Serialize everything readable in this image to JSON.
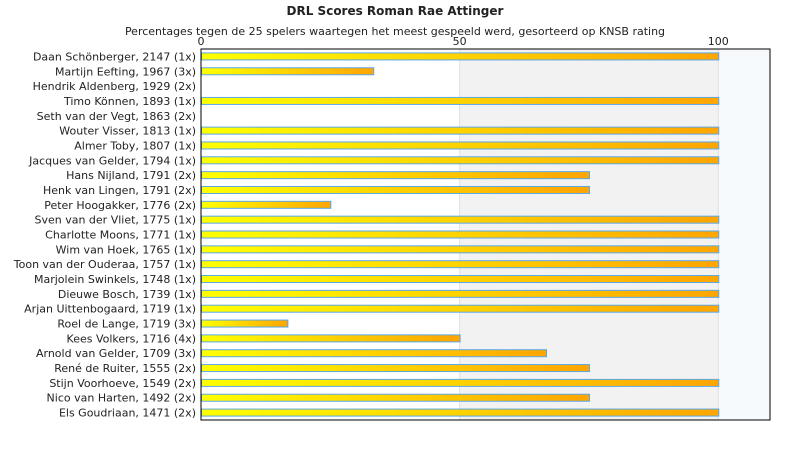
{
  "chart_data": {
    "type": "bar",
    "orientation": "horizontal",
    "title": "DRL Scores Roman Rae Attinger",
    "subtitle": "Percentages tegen de 25 spelers waartegen het meest gespeeld werd, gesorteerd op KNSB rating",
    "xlim": [
      0,
      110
    ],
    "xticks": [
      0,
      50,
      100
    ],
    "categories": [
      "Daan Schönberger, 2147 (1x)",
      "Martijn Eefting, 1967 (3x)",
      "Hendrik Aldenberg, 1929 (2x)",
      "Timo Können, 1893 (1x)",
      "Seth van der Vegt, 1863 (2x)",
      "Wouter Visser, 1813 (1x)",
      "Almer Toby, 1807 (1x)",
      "Jacques van Gelder, 1794 (1x)",
      "Hans Nijland, 1791 (2x)",
      "Henk van Lingen, 1791 (2x)",
      "Peter Hoogakker, 1776 (2x)",
      "Sven van der Vliet, 1775 (1x)",
      "Charlotte Moons, 1771 (1x)",
      "Wim van Hoek, 1765 (1x)",
      "Toon van der Ouderaa, 1757 (1x)",
      "Marjolein Swinkels, 1748 (1x)",
      "Dieuwe Bosch, 1739 (1x)",
      "Arjan Uittenbogaard, 1719 (1x)",
      "Roel de Lange, 1719 (3x)",
      "Kees Volkers, 1716 (4x)",
      "Arnold van Gelder, 1709 (3x)",
      "René de Ruiter, 1555 (2x)",
      "Stijn Voorhoeve, 1549 (2x)",
      "Nico van Harten, 1492 (2x)",
      "Els Goudriaan, 1471 (2x)"
    ],
    "values": [
      100,
      33.3,
      0,
      100,
      0,
      100,
      100,
      100,
      75,
      75,
      25,
      100,
      100,
      100,
      100,
      100,
      100,
      100,
      16.7,
      50,
      66.7,
      75,
      100,
      75,
      100
    ],
    "colors": {
      "bar_start": "#ffff00",
      "bar_end": "#ffa500",
      "bar_border": "#5aa8e6",
      "band_mid": "#f2f2f2",
      "band_high": "#f7fafd"
    }
  }
}
